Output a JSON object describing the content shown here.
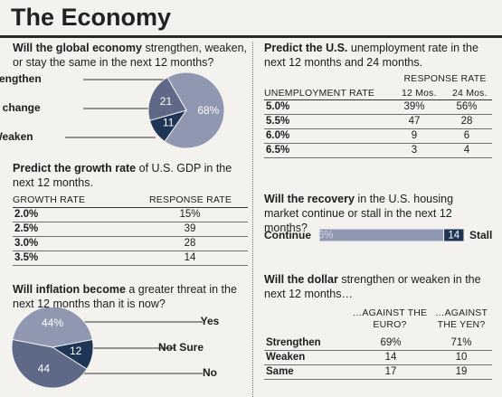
{
  "title": "The Economy",
  "chart_data": [
    {
      "type": "pie",
      "question": {
        "bold": "Will the global economy",
        "rest": " strengthen, weaken, or stay the same in the next 12 months?"
      },
      "categories": [
        "Strengthen",
        "Weaken",
        "No change"
      ],
      "values": [
        68,
        11,
        21
      ],
      "value_labels": [
        "68%",
        "11",
        "21"
      ],
      "colors": [
        "#9097b0",
        "#1f3556",
        "#5e6887"
      ]
    },
    {
      "type": "pie",
      "question": {
        "bold": "Will inflation become",
        "rest": " a greater threat in the next 12 months than it is now?"
      },
      "categories": [
        "Yes",
        "Not Sure",
        "No"
      ],
      "values": [
        44,
        12,
        44
      ],
      "value_labels": [
        "44%",
        "12",
        "44"
      ],
      "colors": [
        "#9097b0",
        "#1f3556",
        "#5e6887"
      ]
    },
    {
      "type": "bar",
      "question": {
        "bold": "Will the recovery",
        "rest": " in the U.S. housing market continue or stall in the next 12 months?"
      },
      "categories": [
        "Continue",
        "Stall"
      ],
      "values": [
        86,
        14
      ],
      "value_labels": [
        "86%",
        "14"
      ],
      "colors": [
        "#9097b0",
        "#1f3556"
      ]
    }
  ],
  "tables": [
    {
      "question": {
        "bold": "Predict the growth rate",
        "rest": " of U.S. GDP in the next 12 months."
      },
      "columns": [
        "GROWTH RATE",
        "RESPONSE RATE"
      ],
      "rows": [
        [
          "2.0%",
          "15%"
        ],
        [
          "2.5%",
          "39"
        ],
        [
          "3.0%",
          "28"
        ],
        [
          "3.5%",
          "14"
        ]
      ]
    },
    {
      "question": {
        "bold": "Predict the U.S.",
        "rest": " unemployment rate in the next 12 months and 24 months."
      },
      "group_header": "RESPONSE RATE",
      "columns": [
        "UNEMPLOYMENT RATE",
        "12 Mos.",
        "24 Mos."
      ],
      "rows": [
        [
          "5.0%",
          "39%",
          "56%"
        ],
        [
          "5.5%",
          "47",
          "28"
        ],
        [
          "6.0%",
          "9",
          "6"
        ],
        [
          "6.5%",
          "3",
          "4"
        ]
      ]
    },
    {
      "question": {
        "bold": "Will the dollar",
        "rest": " strengthen or weaken in the next 12 months…"
      },
      "columns": [
        "…AGAINST THE EURO?",
        "…AGAINST THE YEN?"
      ],
      "rows": [
        [
          "Strengthen",
          "69%",
          "71%"
        ],
        [
          "Weaken",
          "14",
          "10"
        ],
        [
          "Same",
          "17",
          "19"
        ]
      ]
    }
  ]
}
